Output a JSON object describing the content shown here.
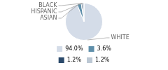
{
  "chart_data": {
    "type": "pie",
    "categories": [
      "WHITE",
      "ASIAN",
      "HISPANIC",
      "BLACK"
    ],
    "values": [
      94.0,
      3.6,
      1.2,
      1.2
    ],
    "value_labels": [
      "94.0%",
      "3.6%",
      "1.2%",
      "1.2%"
    ],
    "colors": [
      "#d4dce8",
      "#5f8faa",
      "#2b4a6b",
      "#bcc8d4"
    ],
    "legend": "bottom"
  }
}
